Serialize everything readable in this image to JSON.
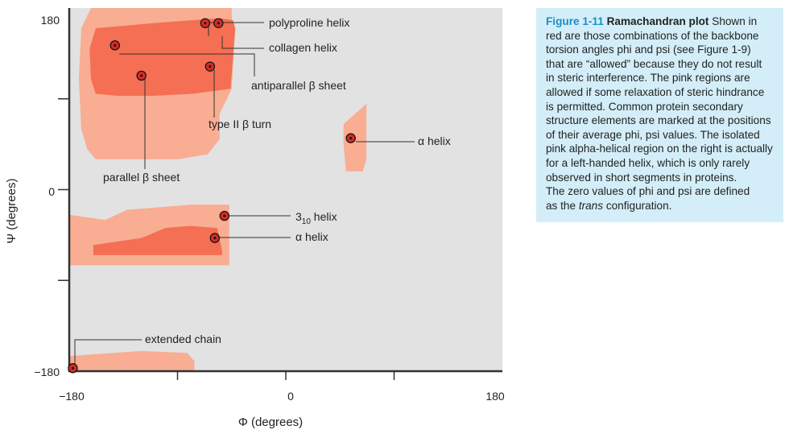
{
  "chart_data": {
    "type": "region-scatter",
    "xlabel": "Φ (degrees)",
    "ylabel": "Ψ (degrees)",
    "xlim": [
      -180,
      180
    ],
    "ylim": [
      -180,
      180
    ],
    "x_tick_labels": [
      "−180",
      "0",
      "180"
    ],
    "y_tick_labels": [
      "180",
      "0",
      "−180"
    ],
    "colors": {
      "background": "#e2e2e2",
      "allowed": "#f46f53",
      "allowed_relaxed": "#f9ad92",
      "marker": "#d22b27",
      "axis": "#333333"
    },
    "regions": [
      {
        "level": "relaxed",
        "polygon": [
          [
            -160,
            180
          ],
          [
            -45,
            180
          ],
          [
            -45,
            170
          ],
          [
            -42,
            160
          ],
          [
            -45,
            100
          ],
          [
            -55,
            75
          ],
          [
            -55,
            50
          ],
          [
            -65,
            35
          ],
          [
            -90,
            30
          ],
          [
            -158,
            30
          ],
          [
            -165,
            40
          ],
          [
            -170,
            60
          ],
          [
            -172,
            110
          ],
          [
            -170,
            160
          ],
          [
            -162,
            180
          ]
        ]
      },
      {
        "level": "allowed",
        "polygon": [
          [
            -158,
            160
          ],
          [
            -110,
            165
          ],
          [
            -55,
            170
          ],
          [
            -44,
            168
          ],
          [
            -42,
            160
          ],
          [
            -46,
            100
          ],
          [
            -78,
            95
          ],
          [
            -110,
            93
          ],
          [
            -140,
            93
          ],
          [
            -158,
            95
          ],
          [
            -162,
            110
          ],
          [
            -163,
            140
          ]
        ]
      },
      {
        "level": "relaxed",
        "polygon": [
          [
            -180,
            -25
          ],
          [
            -150,
            -30
          ],
          [
            -132,
            -20
          ],
          [
            -110,
            -18
          ],
          [
            -80,
            -15
          ],
          [
            -47,
            -15
          ],
          [
            -47,
            -75
          ],
          [
            -180,
            -75
          ]
        ]
      },
      {
        "level": "allowed",
        "polygon": [
          [
            -160,
            -55
          ],
          [
            -120,
            -48
          ],
          [
            -100,
            -38
          ],
          [
            -80,
            -36
          ],
          [
            -57,
            -38
          ],
          [
            -53,
            -60
          ],
          [
            -53,
            -65
          ],
          [
            -160,
            -65
          ]
        ]
      },
      {
        "level": "relaxed",
        "polygon": [
          [
            -180,
            -165
          ],
          [
            -120,
            -160
          ],
          [
            -82,
            -162
          ],
          [
            -76,
            -170
          ],
          [
            -76,
            -180
          ],
          [
            -180,
            -180
          ]
        ]
      },
      {
        "level": "relaxed",
        "polygon": [
          [
            48,
            65
          ],
          [
            67,
            85
          ],
          [
            67,
            30
          ],
          [
            64,
            18
          ],
          [
            50,
            18
          ],
          [
            48,
            45
          ]
        ]
      }
    ],
    "points": [
      {
        "name": "polyproline helix",
        "x": -67,
        "y": 165
      },
      {
        "name": "collagen helix",
        "x": -56,
        "y": 165
      },
      {
        "name": "antiparallel β sheet",
        "x": -142,
        "y": 143
      },
      {
        "name": "parallel β sheet",
        "x": -120,
        "y": 113
      },
      {
        "name": "type II β turn",
        "x": -63,
        "y": 122
      },
      {
        "name": "α helix",
        "x": 54,
        "y": 51
      },
      {
        "name": "3₁₀ helix",
        "x": -51,
        "y": -26
      },
      {
        "name": "α helix",
        "x": -59,
        "y": -48
      },
      {
        "name": "extended chain",
        "x": -177,
        "y": -177
      }
    ],
    "annotations": {
      "polyproline": "polyproline helix",
      "collagen": "collagen helix",
      "antiparallel": "antiparallel β sheet",
      "type2": "type II β turn",
      "parallel": "parallel β sheet",
      "alpha_left": "α helix",
      "helix310_main": "3",
      "helix310_sub": "10",
      "helix310_tail": " helix",
      "alpha_right": "α helix",
      "extended": "extended chain"
    }
  },
  "caption": {
    "figure": "Figure 1-11",
    "title": "Ramachandran plot",
    "lines": [
      "Shown in",
      "red are those combinations of the backbone",
      "torsion angles phi and psi (see Figure 1-9)",
      "that are “allowed” because they do not result",
      "in steric interference. The pink regions are",
      "allowed if some relaxation of steric hindrance",
      "is permitted. Common protein secondary",
      "structure elements are marked at the positions",
      "of their average phi, psi values. The isolated",
      "pink alpha-helical region on the right is actually",
      "for a left-handed helix, which is only rarely",
      "observed in short segments in proteins.",
      "The zero values of phi and psi are defined",
      "as the"
    ],
    "last_emph": "trans",
    "last_tail": " configuration."
  }
}
